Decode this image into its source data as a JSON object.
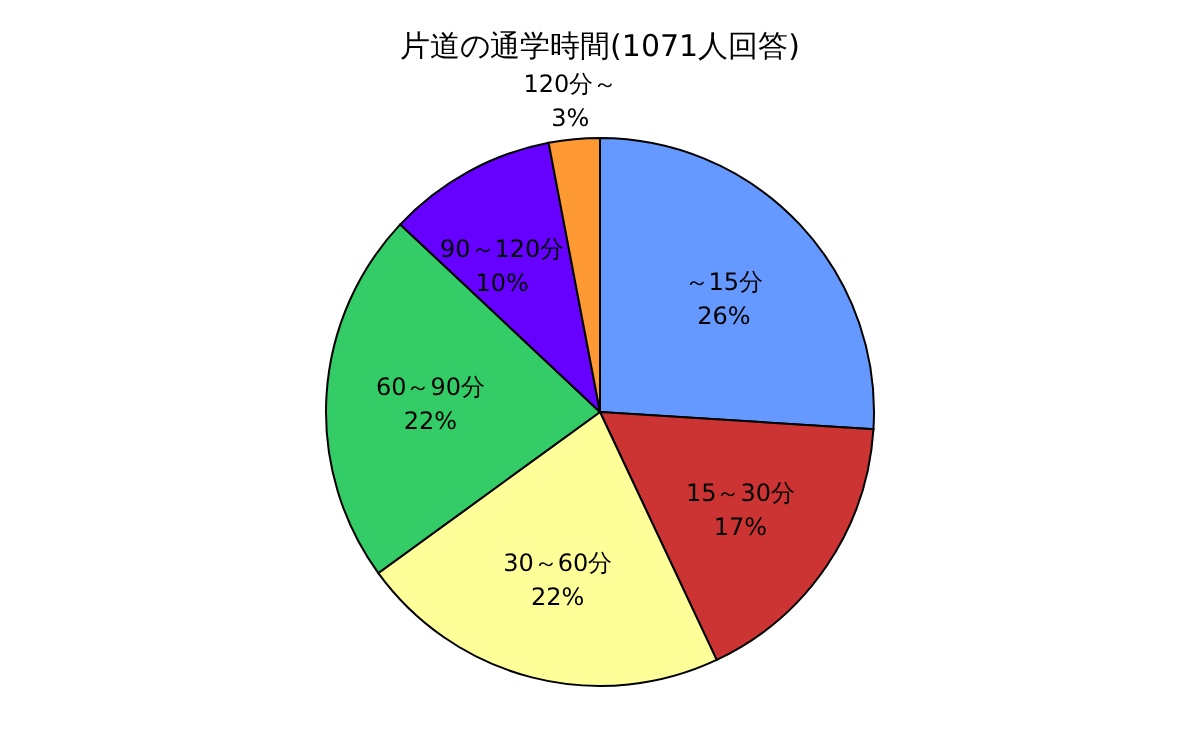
{
  "chart_data": {
    "type": "pie",
    "title": "片道の通学時間(1071人回答)",
    "categories": [
      "～15分",
      "15～30分",
      "30～60分",
      "60～90分",
      "90～120分",
      "120分～"
    ],
    "values": [
      26,
      17,
      22,
      22,
      10,
      3
    ],
    "value_labels": [
      "26%",
      "17%",
      "22%",
      "22%",
      "10%",
      "3%"
    ],
    "colors": [
      "#6699ff",
      "#cc3333",
      "#ffff99",
      "#33cc66",
      "#6600ff",
      "#ff9933"
    ]
  }
}
